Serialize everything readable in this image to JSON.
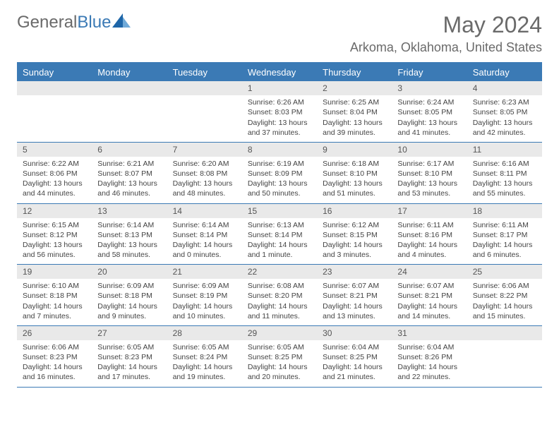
{
  "brand": {
    "general": "General",
    "blue": "Blue"
  },
  "title": "May 2024",
  "location": "Arkoma, Oklahoma, United States",
  "colors": {
    "accent": "#3b7ab5",
    "band": "#e9e9e9",
    "text": "#444444",
    "header_text": "#6a6a6a",
    "white": "#ffffff"
  },
  "weekdays": [
    "Sunday",
    "Monday",
    "Tuesday",
    "Wednesday",
    "Thursday",
    "Friday",
    "Saturday"
  ],
  "first_weekday_index": 3,
  "days": [
    {
      "n": "1",
      "sr": "Sunrise: 6:26 AM",
      "ss": "Sunset: 8:03 PM",
      "dl1": "Daylight: 13 hours",
      "dl2": "and 37 minutes."
    },
    {
      "n": "2",
      "sr": "Sunrise: 6:25 AM",
      "ss": "Sunset: 8:04 PM",
      "dl1": "Daylight: 13 hours",
      "dl2": "and 39 minutes."
    },
    {
      "n": "3",
      "sr": "Sunrise: 6:24 AM",
      "ss": "Sunset: 8:05 PM",
      "dl1": "Daylight: 13 hours",
      "dl2": "and 41 minutes."
    },
    {
      "n": "4",
      "sr": "Sunrise: 6:23 AM",
      "ss": "Sunset: 8:05 PM",
      "dl1": "Daylight: 13 hours",
      "dl2": "and 42 minutes."
    },
    {
      "n": "5",
      "sr": "Sunrise: 6:22 AM",
      "ss": "Sunset: 8:06 PM",
      "dl1": "Daylight: 13 hours",
      "dl2": "and 44 minutes."
    },
    {
      "n": "6",
      "sr": "Sunrise: 6:21 AM",
      "ss": "Sunset: 8:07 PM",
      "dl1": "Daylight: 13 hours",
      "dl2": "and 46 minutes."
    },
    {
      "n": "7",
      "sr": "Sunrise: 6:20 AM",
      "ss": "Sunset: 8:08 PM",
      "dl1": "Daylight: 13 hours",
      "dl2": "and 48 minutes."
    },
    {
      "n": "8",
      "sr": "Sunrise: 6:19 AM",
      "ss": "Sunset: 8:09 PM",
      "dl1": "Daylight: 13 hours",
      "dl2": "and 50 minutes."
    },
    {
      "n": "9",
      "sr": "Sunrise: 6:18 AM",
      "ss": "Sunset: 8:10 PM",
      "dl1": "Daylight: 13 hours",
      "dl2": "and 51 minutes."
    },
    {
      "n": "10",
      "sr": "Sunrise: 6:17 AM",
      "ss": "Sunset: 8:10 PM",
      "dl1": "Daylight: 13 hours",
      "dl2": "and 53 minutes."
    },
    {
      "n": "11",
      "sr": "Sunrise: 6:16 AM",
      "ss": "Sunset: 8:11 PM",
      "dl1": "Daylight: 13 hours",
      "dl2": "and 55 minutes."
    },
    {
      "n": "12",
      "sr": "Sunrise: 6:15 AM",
      "ss": "Sunset: 8:12 PM",
      "dl1": "Daylight: 13 hours",
      "dl2": "and 56 minutes."
    },
    {
      "n": "13",
      "sr": "Sunrise: 6:14 AM",
      "ss": "Sunset: 8:13 PM",
      "dl1": "Daylight: 13 hours",
      "dl2": "and 58 minutes."
    },
    {
      "n": "14",
      "sr": "Sunrise: 6:14 AM",
      "ss": "Sunset: 8:14 PM",
      "dl1": "Daylight: 14 hours",
      "dl2": "and 0 minutes."
    },
    {
      "n": "15",
      "sr": "Sunrise: 6:13 AM",
      "ss": "Sunset: 8:14 PM",
      "dl1": "Daylight: 14 hours",
      "dl2": "and 1 minute."
    },
    {
      "n": "16",
      "sr": "Sunrise: 6:12 AM",
      "ss": "Sunset: 8:15 PM",
      "dl1": "Daylight: 14 hours",
      "dl2": "and 3 minutes."
    },
    {
      "n": "17",
      "sr": "Sunrise: 6:11 AM",
      "ss": "Sunset: 8:16 PM",
      "dl1": "Daylight: 14 hours",
      "dl2": "and 4 minutes."
    },
    {
      "n": "18",
      "sr": "Sunrise: 6:11 AM",
      "ss": "Sunset: 8:17 PM",
      "dl1": "Daylight: 14 hours",
      "dl2": "and 6 minutes."
    },
    {
      "n": "19",
      "sr": "Sunrise: 6:10 AM",
      "ss": "Sunset: 8:18 PM",
      "dl1": "Daylight: 14 hours",
      "dl2": "and 7 minutes."
    },
    {
      "n": "20",
      "sr": "Sunrise: 6:09 AM",
      "ss": "Sunset: 8:18 PM",
      "dl1": "Daylight: 14 hours",
      "dl2": "and 9 minutes."
    },
    {
      "n": "21",
      "sr": "Sunrise: 6:09 AM",
      "ss": "Sunset: 8:19 PM",
      "dl1": "Daylight: 14 hours",
      "dl2": "and 10 minutes."
    },
    {
      "n": "22",
      "sr": "Sunrise: 6:08 AM",
      "ss": "Sunset: 8:20 PM",
      "dl1": "Daylight: 14 hours",
      "dl2": "and 11 minutes."
    },
    {
      "n": "23",
      "sr": "Sunrise: 6:07 AM",
      "ss": "Sunset: 8:21 PM",
      "dl1": "Daylight: 14 hours",
      "dl2": "and 13 minutes."
    },
    {
      "n": "24",
      "sr": "Sunrise: 6:07 AM",
      "ss": "Sunset: 8:21 PM",
      "dl1": "Daylight: 14 hours",
      "dl2": "and 14 minutes."
    },
    {
      "n": "25",
      "sr": "Sunrise: 6:06 AM",
      "ss": "Sunset: 8:22 PM",
      "dl1": "Daylight: 14 hours",
      "dl2": "and 15 minutes."
    },
    {
      "n": "26",
      "sr": "Sunrise: 6:06 AM",
      "ss": "Sunset: 8:23 PM",
      "dl1": "Daylight: 14 hours",
      "dl2": "and 16 minutes."
    },
    {
      "n": "27",
      "sr": "Sunrise: 6:05 AM",
      "ss": "Sunset: 8:23 PM",
      "dl1": "Daylight: 14 hours",
      "dl2": "and 17 minutes."
    },
    {
      "n": "28",
      "sr": "Sunrise: 6:05 AM",
      "ss": "Sunset: 8:24 PM",
      "dl1": "Daylight: 14 hours",
      "dl2": "and 19 minutes."
    },
    {
      "n": "29",
      "sr": "Sunrise: 6:05 AM",
      "ss": "Sunset: 8:25 PM",
      "dl1": "Daylight: 14 hours",
      "dl2": "and 20 minutes."
    },
    {
      "n": "30",
      "sr": "Sunrise: 6:04 AM",
      "ss": "Sunset: 8:25 PM",
      "dl1": "Daylight: 14 hours",
      "dl2": "and 21 minutes."
    },
    {
      "n": "31",
      "sr": "Sunrise: 6:04 AM",
      "ss": "Sunset: 8:26 PM",
      "dl1": "Daylight: 14 hours",
      "dl2": "and 22 minutes."
    }
  ]
}
